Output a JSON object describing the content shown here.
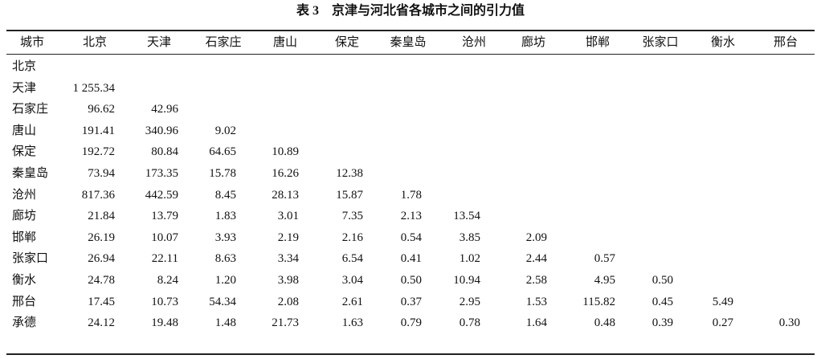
{
  "title": "表 3　京津与河北省各城市之间的引力值",
  "table": {
    "header": [
      "城市",
      "北京",
      "天津",
      "石家庄",
      "唐山",
      "保定",
      "秦皇岛",
      "沧州",
      "廊坊",
      "邯郸",
      "张家口",
      "衡水",
      "邢台"
    ],
    "rows": [
      [
        "北京"
      ],
      [
        "天津",
        "1 255.34"
      ],
      [
        "石家庄",
        "96.62",
        "42.96"
      ],
      [
        "唐山",
        "191.41",
        "340.96",
        "9.02"
      ],
      [
        "保定",
        "192.72",
        "80.84",
        "64.65",
        "10.89"
      ],
      [
        "秦皇岛",
        "73.94",
        "173.35",
        "15.78",
        "16.26",
        "12.38"
      ],
      [
        "沧州",
        "817.36",
        "442.59",
        "8.45",
        "28.13",
        "15.87",
        "1.78"
      ],
      [
        "廊坊",
        "21.84",
        "13.79",
        "1.83",
        "3.01",
        "7.35",
        "2.13",
        "13.54"
      ],
      [
        "邯郸",
        "26.19",
        "10.07",
        "3.93",
        "2.19",
        "2.16",
        "0.54",
        "3.85",
        "2.09"
      ],
      [
        "张家口",
        "26.94",
        "22.11",
        "8.63",
        "3.34",
        "6.54",
        "0.41",
        "1.02",
        "2.44",
        "0.57"
      ],
      [
        "衡水",
        "24.78",
        "8.24",
        "1.20",
        "3.98",
        "3.04",
        "0.50",
        "10.94",
        "2.58",
        "4.95",
        "0.50"
      ],
      [
        "邢台",
        "17.45",
        "10.73",
        "54.34",
        "2.08",
        "2.61",
        "0.37",
        "2.95",
        "1.53",
        "115.82",
        "0.45",
        "5.49"
      ],
      [
        "承德",
        "24.12",
        "19.48",
        "1.48",
        "21.73",
        "1.63",
        "0.79",
        "0.78",
        "1.64",
        "0.48",
        "0.39",
        "0.27",
        "0.30"
      ]
    ]
  }
}
